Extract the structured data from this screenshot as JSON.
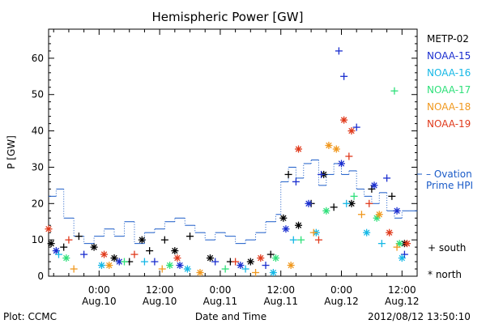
{
  "chart_data": {
    "type": "scatter",
    "title": "Hemispheric Power [GW]",
    "ylabel": "P [GW]",
    "xlabel": "Date and Time",
    "ylim": [
      0,
      68
    ],
    "xlim": [
      "2012-08-09T14:00",
      "2012-08-12T15:00"
    ],
    "y_ticks": [
      0,
      10,
      20,
      30,
      40,
      50,
      60
    ],
    "x_ticks": [
      {
        "time": "2012-08-10T00:00",
        "line1": "0:00",
        "line2": "Aug.10"
      },
      {
        "time": "2012-08-10T12:00",
        "line1": "12:00",
        "line2": "Aug.10"
      },
      {
        "time": "2012-08-11T00:00",
        "line1": "0:00",
        "line2": "Aug.11"
      },
      {
        "time": "2012-08-11T12:00",
        "line1": "12:00",
        "line2": "Aug.11"
      },
      {
        "time": "2012-08-12T00:00",
        "line1": "0:00",
        "line2": "Aug.12"
      },
      {
        "time": "2012-08-12T12:00",
        "line1": "12:00",
        "line2": "Aug.12"
      }
    ],
    "series": [
      {
        "name": "METP-02",
        "color": "#000000",
        "points": [
          {
            "t": "2012-08-09T14:30",
            "y": 9,
            "m": "north"
          },
          {
            "t": "2012-08-09T17:00",
            "y": 8,
            "m": "south"
          },
          {
            "t": "2012-08-09T20:00",
            "y": 11,
            "m": "south"
          },
          {
            "t": "2012-08-09T23:00",
            "y": 8,
            "m": "north"
          },
          {
            "t": "2012-08-10T03:00",
            "y": 5,
            "m": "north"
          },
          {
            "t": "2012-08-10T06:00",
            "y": 4,
            "m": "south"
          },
          {
            "t": "2012-08-10T08:30",
            "y": 10,
            "m": "north"
          },
          {
            "t": "2012-08-10T10:00",
            "y": 7,
            "m": "south"
          },
          {
            "t": "2012-08-10T13:00",
            "y": 10,
            "m": "south"
          },
          {
            "t": "2012-08-10T15:00",
            "y": 7,
            "m": "north"
          },
          {
            "t": "2012-08-10T18:00",
            "y": 11,
            "m": "south"
          },
          {
            "t": "2012-08-10T22:00",
            "y": 5,
            "m": "north"
          },
          {
            "t": "2012-08-11T02:00",
            "y": 4,
            "m": "south"
          },
          {
            "t": "2012-08-11T06:00",
            "y": 4,
            "m": "north"
          },
          {
            "t": "2012-08-11T10:00",
            "y": 6,
            "m": "south"
          },
          {
            "t": "2012-08-11T12:30",
            "y": 16,
            "m": "north"
          },
          {
            "t": "2012-08-11T13:30",
            "y": 28,
            "m": "south"
          },
          {
            "t": "2012-08-11T15:30",
            "y": 14,
            "m": "north"
          },
          {
            "t": "2012-08-11T18:00",
            "y": 20,
            "m": "south"
          },
          {
            "t": "2012-08-11T20:30",
            "y": 28,
            "m": "north"
          },
          {
            "t": "2012-08-11T22:30",
            "y": 19,
            "m": "south"
          },
          {
            "t": "2012-08-12T02:00",
            "y": 20,
            "m": "north"
          },
          {
            "t": "2012-08-12T06:00",
            "y": 24,
            "m": "south"
          },
          {
            "t": "2012-08-12T10:00",
            "y": 22,
            "m": "south"
          },
          {
            "t": "2012-08-12T12:30",
            "y": 9,
            "m": "north"
          }
        ]
      },
      {
        "name": "NOAA-15",
        "color": "#1a2ecf",
        "points": [
          {
            "t": "2012-08-09T15:30",
            "y": 7,
            "m": "north"
          },
          {
            "t": "2012-08-09T21:00",
            "y": 6,
            "m": "south"
          },
          {
            "t": "2012-08-10T04:00",
            "y": 4,
            "m": "north"
          },
          {
            "t": "2012-08-10T11:00",
            "y": 4,
            "m": "south"
          },
          {
            "t": "2012-08-10T16:00",
            "y": 3,
            "m": "north"
          },
          {
            "t": "2012-08-10T23:00",
            "y": 4,
            "m": "south"
          },
          {
            "t": "2012-08-11T04:00",
            "y": 3,
            "m": "north"
          },
          {
            "t": "2012-08-11T09:00",
            "y": 3,
            "m": "south"
          },
          {
            "t": "2012-08-11T13:00",
            "y": 13,
            "m": "north"
          },
          {
            "t": "2012-08-11T15:00",
            "y": 26,
            "m": "south"
          },
          {
            "t": "2012-08-11T17:30",
            "y": 20,
            "m": "north"
          },
          {
            "t": "2012-08-11T20:00",
            "y": 28,
            "m": "south"
          },
          {
            "t": "2012-08-12T00:00",
            "y": 31,
            "m": "north"
          },
          {
            "t": "2012-08-11T23:30",
            "y": 62,
            "m": "south"
          },
          {
            "t": "2012-08-12T00:30",
            "y": 55,
            "m": "south"
          },
          {
            "t": "2012-08-12T03:00",
            "y": 41,
            "m": "south"
          },
          {
            "t": "2012-08-12T06:30",
            "y": 25,
            "m": "north"
          },
          {
            "t": "2012-08-12T09:00",
            "y": 27,
            "m": "south"
          },
          {
            "t": "2012-08-12T11:00",
            "y": 18,
            "m": "north"
          },
          {
            "t": "2012-08-12T12:30",
            "y": 6,
            "m": "south"
          }
        ]
      },
      {
        "name": "NOAA-16",
        "color": "#16b8e6",
        "points": [
          {
            "t": "2012-08-09T16:00",
            "y": 6,
            "m": "south"
          },
          {
            "t": "2012-08-10T00:30",
            "y": 3,
            "m": "north"
          },
          {
            "t": "2012-08-10T09:00",
            "y": 4,
            "m": "south"
          },
          {
            "t": "2012-08-10T17:30",
            "y": 2,
            "m": "north"
          },
          {
            "t": "2012-08-11T05:00",
            "y": 2,
            "m": "south"
          },
          {
            "t": "2012-08-11T10:30",
            "y": 1,
            "m": "north"
          },
          {
            "t": "2012-08-11T14:30",
            "y": 10,
            "m": "south"
          },
          {
            "t": "2012-08-11T19:00",
            "y": 12,
            "m": "north"
          },
          {
            "t": "2012-08-12T01:00",
            "y": 20,
            "m": "south"
          },
          {
            "t": "2012-08-12T05:00",
            "y": 12,
            "m": "north"
          },
          {
            "t": "2012-08-12T08:00",
            "y": 9,
            "m": "south"
          },
          {
            "t": "2012-08-12T12:00",
            "y": 5,
            "m": "north"
          }
        ]
      },
      {
        "name": "NOAA-17",
        "color": "#2fe07a",
        "points": [
          {
            "t": "2012-08-09T17:30",
            "y": 5,
            "m": "north"
          },
          {
            "t": "2012-08-10T05:00",
            "y": 4,
            "m": "south"
          },
          {
            "t": "2012-08-10T14:00",
            "y": 3,
            "m": "north"
          },
          {
            "t": "2012-08-11T01:00",
            "y": 2,
            "m": "south"
          },
          {
            "t": "2012-08-11T11:00",
            "y": 5,
            "m": "north"
          },
          {
            "t": "2012-08-11T16:00",
            "y": 10,
            "m": "south"
          },
          {
            "t": "2012-08-11T21:00",
            "y": 18,
            "m": "north"
          },
          {
            "t": "2012-08-12T02:30",
            "y": 22,
            "m": "south"
          },
          {
            "t": "2012-08-12T07:00",
            "y": 16,
            "m": "north"
          },
          {
            "t": "2012-08-12T10:30",
            "y": 51,
            "m": "south"
          },
          {
            "t": "2012-08-12T11:30",
            "y": 9,
            "m": "north"
          }
        ]
      },
      {
        "name": "NOAA-18",
        "color": "#f0981e",
        "points": [
          {
            "t": "2012-08-09T19:00",
            "y": 2,
            "m": "south"
          },
          {
            "t": "2012-08-10T02:00",
            "y": 3,
            "m": "north"
          },
          {
            "t": "2012-08-10T12:30",
            "y": 2,
            "m": "south"
          },
          {
            "t": "2012-08-10T20:00",
            "y": 1,
            "m": "north"
          },
          {
            "t": "2012-08-11T07:00",
            "y": 1,
            "m": "south"
          },
          {
            "t": "2012-08-11T14:00",
            "y": 3,
            "m": "north"
          },
          {
            "t": "2012-08-11T18:30",
            "y": 12,
            "m": "south"
          },
          {
            "t": "2012-08-11T21:30",
            "y": 36,
            "m": "north"
          },
          {
            "t": "2012-08-11T23:00",
            "y": 35,
            "m": "north"
          },
          {
            "t": "2012-08-12T04:00",
            "y": 17,
            "m": "south"
          },
          {
            "t": "2012-08-12T07:30",
            "y": 17,
            "m": "north"
          },
          {
            "t": "2012-08-12T11:00",
            "y": 8,
            "m": "south"
          }
        ]
      },
      {
        "name": "NOAA-19",
        "color": "#e03a1c",
        "points": [
          {
            "t": "2012-08-09T14:00",
            "y": 13,
            "m": "north"
          },
          {
            "t": "2012-08-09T18:00",
            "y": 10,
            "m": "south"
          },
          {
            "t": "2012-08-10T01:00",
            "y": 6,
            "m": "north"
          },
          {
            "t": "2012-08-10T07:00",
            "y": 6,
            "m": "south"
          },
          {
            "t": "2012-08-10T15:30",
            "y": 5,
            "m": "north"
          },
          {
            "t": "2012-08-11T03:00",
            "y": 4,
            "m": "south"
          },
          {
            "t": "2012-08-11T08:00",
            "y": 5,
            "m": "north"
          },
          {
            "t": "2012-08-11T15:30",
            "y": 35,
            "m": "north"
          },
          {
            "t": "2012-08-11T19:30",
            "y": 10,
            "m": "south"
          },
          {
            "t": "2012-08-12T00:30",
            "y": 43,
            "m": "north"
          },
          {
            "t": "2012-08-12T01:30",
            "y": 33,
            "m": "south"
          },
          {
            "t": "2012-08-12T02:00",
            "y": 40,
            "m": "north"
          },
          {
            "t": "2012-08-12T05:30",
            "y": 20,
            "m": "south"
          },
          {
            "t": "2012-08-12T09:30",
            "y": 12,
            "m": "north"
          },
          {
            "t": "2012-08-12T13:00",
            "y": 9,
            "m": "north"
          }
        ]
      }
    ],
    "ovation": {
      "name": "Ovation Prime HPI",
      "line1": "– Ovation",
      "line2": "Prime HPI",
      "color": "#1a5bc8",
      "steps": [
        {
          "t": "2012-08-09T14:00",
          "y": 22
        },
        {
          "t": "2012-08-09T15:30",
          "y": 24
        },
        {
          "t": "2012-08-09T17:00",
          "y": 16
        },
        {
          "t": "2012-08-09T19:00",
          "y": 11
        },
        {
          "t": "2012-08-09T21:00",
          "y": 9
        },
        {
          "t": "2012-08-09T23:00",
          "y": 11
        },
        {
          "t": "2012-08-10T01:00",
          "y": 13
        },
        {
          "t": "2012-08-10T03:00",
          "y": 11
        },
        {
          "t": "2012-08-10T05:00",
          "y": 15
        },
        {
          "t": "2012-08-10T07:00",
          "y": 9
        },
        {
          "t": "2012-08-10T09:00",
          "y": 12
        },
        {
          "t": "2012-08-10T11:00",
          "y": 13
        },
        {
          "t": "2012-08-10T13:00",
          "y": 15
        },
        {
          "t": "2012-08-10T15:00",
          "y": 16
        },
        {
          "t": "2012-08-10T17:00",
          "y": 14
        },
        {
          "t": "2012-08-10T19:00",
          "y": 12
        },
        {
          "t": "2012-08-10T21:00",
          "y": 10
        },
        {
          "t": "2012-08-10T23:00",
          "y": 12
        },
        {
          "t": "2012-08-11T01:00",
          "y": 11
        },
        {
          "t": "2012-08-11T03:00",
          "y": 9
        },
        {
          "t": "2012-08-11T05:00",
          "y": 10
        },
        {
          "t": "2012-08-11T07:00",
          "y": 12
        },
        {
          "t": "2012-08-11T09:00",
          "y": 15
        },
        {
          "t": "2012-08-11T11:00",
          "y": 17
        },
        {
          "t": "2012-08-11T12:00",
          "y": 26
        },
        {
          "t": "2012-08-11T13:30",
          "y": 30
        },
        {
          "t": "2012-08-11T15:00",
          "y": 27
        },
        {
          "t": "2012-08-11T16:30",
          "y": 31
        },
        {
          "t": "2012-08-11T18:00",
          "y": 32
        },
        {
          "t": "2012-08-11T19:30",
          "y": 25
        },
        {
          "t": "2012-08-11T21:00",
          "y": 28
        },
        {
          "t": "2012-08-11T22:30",
          "y": 31
        },
        {
          "t": "2012-08-12T00:00",
          "y": 28
        },
        {
          "t": "2012-08-12T01:30",
          "y": 29
        },
        {
          "t": "2012-08-12T03:00",
          "y": 24
        },
        {
          "t": "2012-08-12T04:30",
          "y": 22
        },
        {
          "t": "2012-08-12T06:00",
          "y": 20
        },
        {
          "t": "2012-08-12T07:30",
          "y": 23
        },
        {
          "t": "2012-08-12T09:00",
          "y": 18
        },
        {
          "t": "2012-08-12T10:30",
          "y": 16
        },
        {
          "t": "2012-08-12T12:00",
          "y": 18
        },
        {
          "t": "2012-08-12T13:30",
          "y": 18
        },
        {
          "t": "2012-08-12T15:00",
          "y": 18
        }
      ]
    }
  },
  "legend_markers": {
    "south": "+ south",
    "north": "* north"
  },
  "footer": {
    "plot_credit": "Plot: CCMC",
    "timestamp": "2012/08/12  13:50:10"
  }
}
